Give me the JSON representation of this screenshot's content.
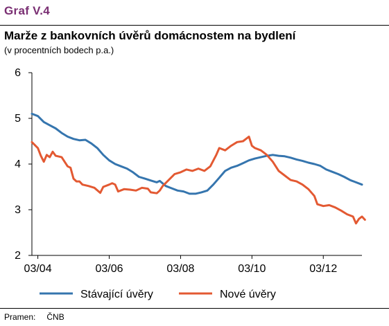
{
  "figure": {
    "label": "Graf V.4",
    "title": "Marže z bankovních úvěrů domácnostem na bydlení",
    "subtitle": "(v procentních bodech p.a.)",
    "source_label": "Pramen:",
    "source_value": "ČNB"
  },
  "colors": {
    "stavajici": "#3575ae",
    "nove": "#e35932",
    "label": "#7a2f73"
  },
  "chart_data": {
    "type": "line",
    "x_ticks": [
      "03/04",
      "03/06",
      "03/08",
      "03/10",
      "03/12"
    ],
    "y_ticks": [
      2,
      3,
      4,
      5,
      6
    ],
    "ylim": [
      2,
      6
    ],
    "xlim": [
      "2004-01",
      "2013-04"
    ],
    "grid": false,
    "legend_position": "bottom",
    "series": [
      {
        "name": "Stávající úvěry",
        "color_key": "stavajici",
        "points": [
          [
            "2004-01",
            5.1
          ],
          [
            "2004-03",
            5.05
          ],
          [
            "2004-05",
            4.92
          ],
          [
            "2004-07",
            4.85
          ],
          [
            "2004-09",
            4.78
          ],
          [
            "2004-11",
            4.68
          ],
          [
            "2005-01",
            4.6
          ],
          [
            "2005-03",
            4.55
          ],
          [
            "2005-05",
            4.52
          ],
          [
            "2005-07",
            4.53
          ],
          [
            "2005-09",
            4.45
          ],
          [
            "2005-11",
            4.35
          ],
          [
            "2006-01",
            4.2
          ],
          [
            "2006-03",
            4.08
          ],
          [
            "2006-05",
            4.0
          ],
          [
            "2006-07",
            3.95
          ],
          [
            "2006-09",
            3.9
          ],
          [
            "2006-11",
            3.82
          ],
          [
            "2007-01",
            3.72
          ],
          [
            "2007-03",
            3.68
          ],
          [
            "2007-05",
            3.64
          ],
          [
            "2007-07",
            3.6
          ],
          [
            "2007-08",
            3.63
          ],
          [
            "2007-10",
            3.52
          ],
          [
            "2007-12",
            3.47
          ],
          [
            "2008-02",
            3.42
          ],
          [
            "2008-04",
            3.4
          ],
          [
            "2008-06",
            3.35
          ],
          [
            "2008-08",
            3.35
          ],
          [
            "2008-10",
            3.38
          ],
          [
            "2008-12",
            3.42
          ],
          [
            "2009-02",
            3.55
          ],
          [
            "2009-04",
            3.7
          ],
          [
            "2009-06",
            3.85
          ],
          [
            "2009-08",
            3.92
          ],
          [
            "2009-10",
            3.96
          ],
          [
            "2009-12",
            4.02
          ],
          [
            "2010-02",
            4.08
          ],
          [
            "2010-04",
            4.12
          ],
          [
            "2010-06",
            4.15
          ],
          [
            "2010-08",
            4.18
          ],
          [
            "2010-10",
            4.2
          ],
          [
            "2010-12",
            4.18
          ],
          [
            "2011-02",
            4.17
          ],
          [
            "2011-04",
            4.14
          ],
          [
            "2011-06",
            4.1
          ],
          [
            "2011-08",
            4.07
          ],
          [
            "2011-10",
            4.03
          ],
          [
            "2011-12",
            4.0
          ],
          [
            "2012-02",
            3.96
          ],
          [
            "2012-04",
            3.88
          ],
          [
            "2012-06",
            3.83
          ],
          [
            "2012-08",
            3.78
          ],
          [
            "2012-10",
            3.72
          ],
          [
            "2012-12",
            3.65
          ],
          [
            "2013-02",
            3.6
          ],
          [
            "2013-04",
            3.55
          ]
        ]
      },
      {
        "name": "Nové úvěry",
        "color_key": "nove",
        "points": [
          [
            "2004-01",
            4.48
          ],
          [
            "2004-03",
            4.35
          ],
          [
            "2004-04",
            4.18
          ],
          [
            "2004-05",
            4.05
          ],
          [
            "2004-06",
            4.2
          ],
          [
            "2004-07",
            4.15
          ],
          [
            "2004-08",
            4.27
          ],
          [
            "2004-09",
            4.18
          ],
          [
            "2004-11",
            4.15
          ],
          [
            "2005-01",
            3.95
          ],
          [
            "2005-02",
            3.92
          ],
          [
            "2005-03",
            3.68
          ],
          [
            "2005-04",
            3.62
          ],
          [
            "2005-05",
            3.62
          ],
          [
            "2005-06",
            3.55
          ],
          [
            "2005-08",
            3.52
          ],
          [
            "2005-10",
            3.48
          ],
          [
            "2005-12",
            3.37
          ],
          [
            "2006-01",
            3.5
          ],
          [
            "2006-03",
            3.55
          ],
          [
            "2006-04",
            3.58
          ],
          [
            "2006-05",
            3.55
          ],
          [
            "2006-06",
            3.4
          ],
          [
            "2006-08",
            3.45
          ],
          [
            "2006-10",
            3.44
          ],
          [
            "2006-12",
            3.42
          ],
          [
            "2007-02",
            3.48
          ],
          [
            "2007-04",
            3.46
          ],
          [
            "2007-05",
            3.38
          ],
          [
            "2007-07",
            3.36
          ],
          [
            "2007-08",
            3.42
          ],
          [
            "2007-09",
            3.52
          ],
          [
            "2007-11",
            3.65
          ],
          [
            "2008-01",
            3.78
          ],
          [
            "2008-03",
            3.82
          ],
          [
            "2008-05",
            3.88
          ],
          [
            "2008-07",
            3.85
          ],
          [
            "2008-09",
            3.9
          ],
          [
            "2008-11",
            3.85
          ],
          [
            "2009-01",
            3.95
          ],
          [
            "2009-03",
            4.2
          ],
          [
            "2009-04",
            4.35
          ],
          [
            "2009-06",
            4.3
          ],
          [
            "2009-08",
            4.4
          ],
          [
            "2009-10",
            4.48
          ],
          [
            "2009-12",
            4.5
          ],
          [
            "2010-01",
            4.55
          ],
          [
            "2010-02",
            4.6
          ],
          [
            "2010-03",
            4.4
          ],
          [
            "2010-04",
            4.35
          ],
          [
            "2010-06",
            4.3
          ],
          [
            "2010-08",
            4.2
          ],
          [
            "2010-10",
            4.05
          ],
          [
            "2010-12",
            3.85
          ],
          [
            "2011-02",
            3.75
          ],
          [
            "2011-04",
            3.65
          ],
          [
            "2011-06",
            3.62
          ],
          [
            "2011-08",
            3.55
          ],
          [
            "2011-10",
            3.45
          ],
          [
            "2011-12",
            3.3
          ],
          [
            "2012-01",
            3.12
          ],
          [
            "2012-03",
            3.08
          ],
          [
            "2012-05",
            3.1
          ],
          [
            "2012-07",
            3.05
          ],
          [
            "2012-09",
            2.98
          ],
          [
            "2012-11",
            2.9
          ],
          [
            "2013-01",
            2.85
          ],
          [
            "2013-02",
            2.7
          ],
          [
            "2013-03",
            2.8
          ],
          [
            "2013-04",
            2.85
          ],
          [
            "2013-05",
            2.78
          ]
        ]
      }
    ]
  }
}
